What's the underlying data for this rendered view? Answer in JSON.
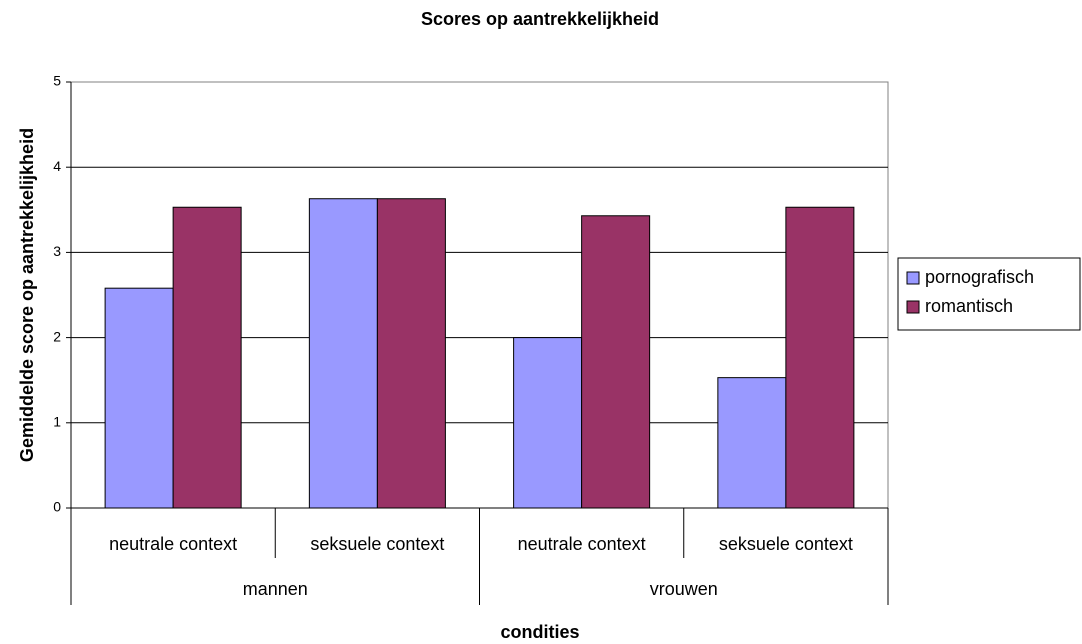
{
  "chart_data": {
    "type": "bar",
    "title": "Scores op aantrekkelijkheid",
    "x_label": "condities",
    "y_label": "Gemiddelde score op aantrekkelijkheid",
    "groups": [
      {
        "name": "mannen",
        "categories": [
          "neutrale context",
          "seksuele context"
        ]
      },
      {
        "name": "vrouwen",
        "categories": [
          "neutrale context",
          "seksuele context"
        ]
      }
    ],
    "series": [
      {
        "name": "pornografisch",
        "color": "#9999ff",
        "values": [
          2.58,
          3.63,
          2.0,
          1.53
        ]
      },
      {
        "name": "romantisch",
        "color": "#993366",
        "values": [
          3.53,
          3.63,
          3.43,
          3.53
        ]
      }
    ],
    "ylim": [
      0,
      5
    ],
    "yticks": [
      0,
      1,
      2,
      3,
      4,
      5
    ],
    "grid": true,
    "legend": "right"
  }
}
